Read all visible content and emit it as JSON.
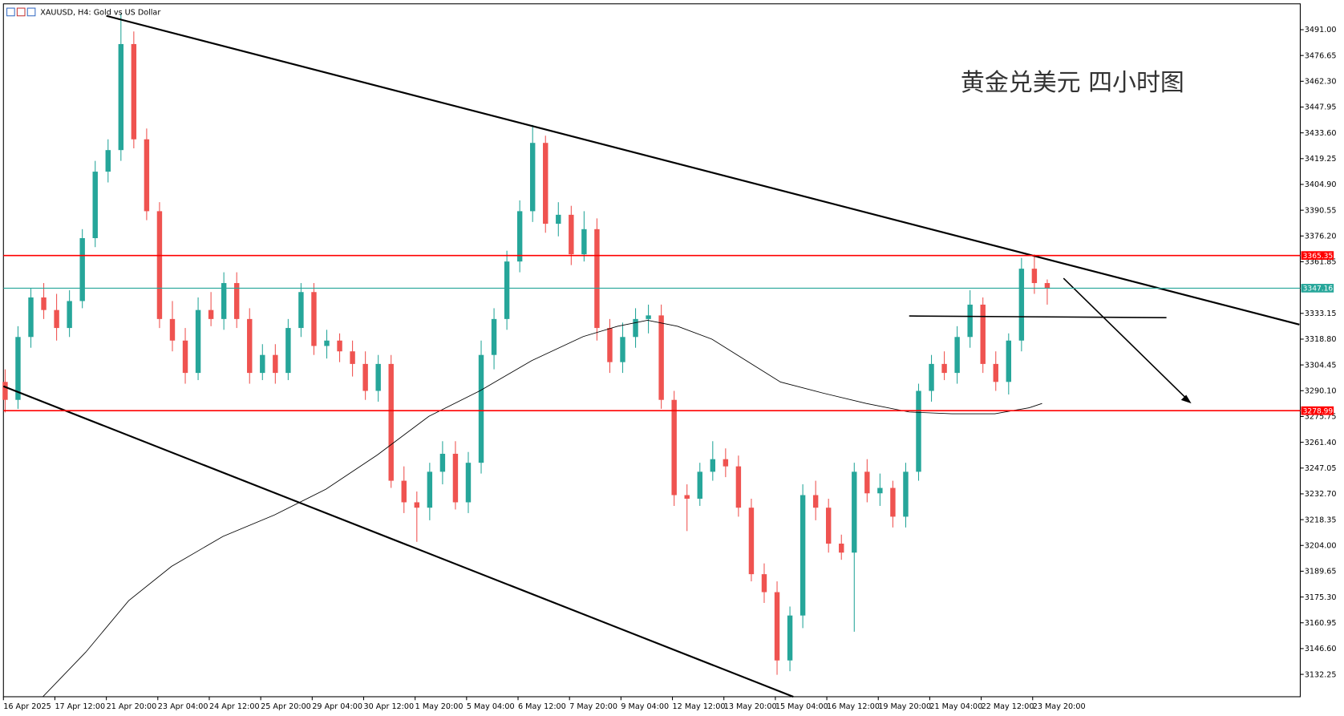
{
  "chart_data": {
    "type": "candlestick",
    "title": "黄金兑美元 四小时图",
    "symbol_label": "XAUUSD, H4:  Gold vs US Dollar",
    "up_color": "#26a69a",
    "down_color": "#ef5350",
    "ylim": [
      3119.8,
      3507.3
    ],
    "yticks": [
      {
        "value": 3491,
        "label": "3491.00"
      },
      {
        "value": 3476.65,
        "label": "3476.65"
      },
      {
        "value": 3462.3,
        "label": "3462.30"
      },
      {
        "value": 3447.95,
        "label": "3447.95"
      },
      {
        "value": 3433.6,
        "label": "3433.60"
      },
      {
        "value": 3419.25,
        "label": "3419.25"
      },
      {
        "value": 3404.9,
        "label": "3404.90"
      },
      {
        "value": 3390.55,
        "label": "3390.55"
      },
      {
        "value": 3376.2,
        "label": "3376.20"
      },
      {
        "value": 3361.85,
        "label": "3361.85"
      },
      {
        "value": 3333.15,
        "label": "3333.15"
      },
      {
        "value": 3318.8,
        "label": "3318.80"
      },
      {
        "value": 3304.45,
        "label": "3304.45"
      },
      {
        "value": 3290.1,
        "label": "3290.10"
      },
      {
        "value": 3275.75,
        "label": "3275.75"
      },
      {
        "value": 3261.4,
        "label": "3261.40"
      },
      {
        "value": 3247.05,
        "label": "3247.05"
      },
      {
        "value": 3232.7,
        "label": "3232.70"
      },
      {
        "value": 3218.35,
        "label": "3218.35"
      },
      {
        "value": 3204,
        "label": "3204.00"
      },
      {
        "value": 3189.65,
        "label": "3189.65"
      },
      {
        "value": 3175.3,
        "label": "3175.30"
      },
      {
        "value": 3160.95,
        "label": "3160.95"
      },
      {
        "value": 3146.6,
        "label": "3146.60"
      },
      {
        "value": 3132.25,
        "label": "3132.25"
      }
    ],
    "x_labels": [
      "16 Apr 2025",
      "17 Apr 12:00",
      "21 Apr 20:00",
      "23 Apr 04:00",
      "24 Apr 12:00",
      "25 Apr 20:00",
      "29 Apr 04:00",
      "30 Apr 12:00",
      "1 May 20:00",
      "5 May 04:00",
      "6 May 12:00",
      "7 May 20:00",
      "9 May 04:00",
      "12 May 12:00",
      "13 May 20:00",
      "15 May 04:00",
      "16 May 12:00",
      "19 May 20:00",
      "21 May 04:00",
      "22 May 12:00",
      "23 May 20:00"
    ],
    "hlines": [
      {
        "value": 3365.35,
        "label": "3365.35",
        "color": "#ff0000"
      },
      {
        "value": 3278.99,
        "label": "3278.99",
        "color": "#ff0000"
      },
      {
        "value": 3347.16,
        "label": "3347.16",
        "color": "#26a69a"
      }
    ],
    "open": [
      3295,
      3285,
      3320,
      3342,
      3335,
      3325,
      3340,
      3375,
      3412,
      3424,
      3483,
      3430,
      3390,
      3330,
      3318,
      3300,
      3335,
      3330,
      3350,
      3330,
      3300,
      3310,
      3300,
      3325,
      3345,
      3315,
      3318,
      3312,
      3305,
      3290,
      3305,
      3240,
      3228,
      3225,
      3245,
      3255,
      3228,
      3250,
      3310,
      3330,
      3362,
      3390,
      3428,
      3383,
      3388,
      3366,
      3380,
      3325,
      3306,
      3320,
      3330,
      3332,
      3285,
      3232,
      3230,
      3245,
      3252,
      3248,
      3225,
      3188,
      3178,
      3140,
      3165,
      3232,
      3225,
      3205,
      3200,
      3245,
      3233,
      3236,
      3220,
      3245,
      3290,
      3305,
      3300,
      3320,
      3338,
      3305,
      3295,
      3318,
      3358,
      3350
    ],
    "high": [
      3302,
      3326,
      3347,
      3350,
      3344,
      3346,
      3380,
      3418,
      3430,
      3500,
      3490,
      3436,
      3395,
      3340,
      3325,
      3342,
      3345,
      3356,
      3356,
      3336,
      3316,
      3316,
      3330,
      3350,
      3350,
      3324,
      3322,
      3318,
      3312,
      3310,
      3310,
      3248,
      3234,
      3250,
      3262,
      3262,
      3256,
      3318,
      3336,
      3368,
      3396,
      3438,
      3432,
      3395,
      3393,
      3390,
      3386,
      3330,
      3328,
      3336,
      3338,
      3338,
      3290,
      3238,
      3250,
      3262,
      3258,
      3254,
      3230,
      3194,
      3184,
      3170,
      3238,
      3240,
      3230,
      3210,
      3250,
      3252,
      3244,
      3240,
      3250,
      3294,
      3310,
      3312,
      3326,
      3346,
      3342,
      3312,
      3322,
      3364,
      3366,
      3352
    ],
    "low": [
      3278,
      3280,
      3314,
      3330,
      3318,
      3320,
      3336,
      3370,
      3406,
      3418,
      3425,
      3385,
      3325,
      3312,
      3294,
      3296,
      3326,
      3324,
      3325,
      3294,
      3296,
      3294,
      3296,
      3320,
      3310,
      3308,
      3306,
      3298,
      3285,
      3284,
      3236,
      3222,
      3206,
      3218,
      3238,
      3224,
      3222,
      3244,
      3302,
      3324,
      3356,
      3384,
      3378,
      3376,
      3360,
      3362,
      3318,
      3300,
      3300,
      3314,
      3322,
      3280,
      3226,
      3212,
      3226,
      3240,
      3242,
      3220,
      3184,
      3172,
      3132,
      3134,
      3158,
      3218,
      3200,
      3196,
      3156,
      3228,
      3226,
      3214,
      3214,
      3240,
      3284,
      3296,
      3294,
      3314,
      3300,
      3290,
      3288,
      3312,
      3344,
      3338
    ],
    "close": [
      3285,
      3320,
      3342,
      3335,
      3325,
      3340,
      3375,
      3412,
      3424,
      3483,
      3430,
      3390,
      3330,
      3318,
      3300,
      3335,
      3330,
      3350,
      3330,
      3300,
      3310,
      3300,
      3325,
      3345,
      3315,
      3318,
      3312,
      3305,
      3290,
      3305,
      3240,
      3228,
      3225,
      3245,
      3255,
      3228,
      3250,
      3310,
      3330,
      3362,
      3390,
      3428,
      3383,
      3388,
      3366,
      3380,
      3325,
      3306,
      3320,
      3330,
      3332,
      3285,
      3232,
      3230,
      3245,
      3252,
      3248,
      3225,
      3188,
      3178,
      3140,
      3165,
      3232,
      3225,
      3205,
      3200,
      3245,
      3233,
      3236,
      3220,
      3245,
      3290,
      3305,
      3300,
      3320,
      3338,
      3305,
      3295,
      3318,
      3358,
      3350,
      3347
    ]
  }
}
